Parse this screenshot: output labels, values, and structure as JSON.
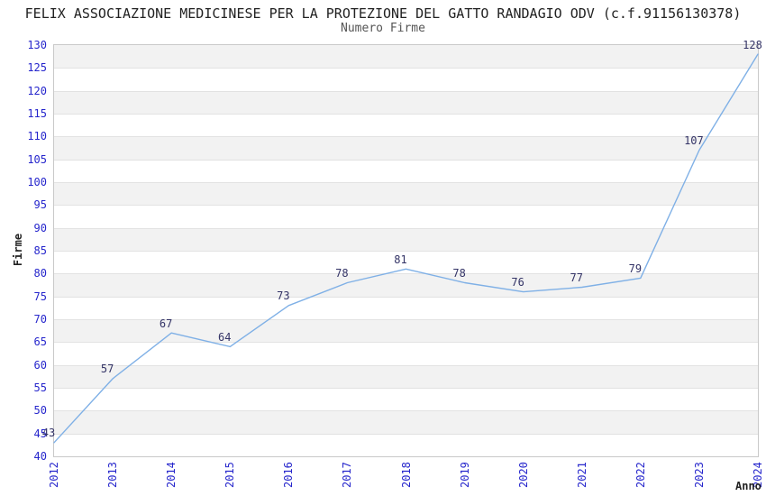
{
  "chart_data": {
    "type": "line",
    "title": "FELIX ASSOCIAZIONE MEDICINESE PER LA PROTEZIONE DEL GATTO RANDAGIO ODV (c.f.91156130378)",
    "subtitle": "Numero Firme",
    "xlabel": "Anno",
    "ylabel": "Firme",
    "categories": [
      "2012",
      "2013",
      "2014",
      "2015",
      "2016",
      "2017",
      "2018",
      "2019",
      "2020",
      "2021",
      "2022",
      "2023",
      "2024"
    ],
    "values": [
      43,
      57,
      67,
      64,
      73,
      78,
      81,
      78,
      76,
      77,
      79,
      107,
      128
    ],
    "y_ticks": [
      40,
      45,
      50,
      55,
      60,
      65,
      70,
      75,
      80,
      85,
      90,
      95,
      100,
      105,
      110,
      115,
      120,
      125,
      130
    ],
    "ylim": [
      40,
      130
    ],
    "ytick_step": 5,
    "grid": "alternating horizontal bands with lines every 5 units",
    "legend": "none",
    "markers": "none",
    "line_color": "#7fb0e6",
    "tick_label_color": "#2626cc",
    "data_label_color": "#333366"
  }
}
